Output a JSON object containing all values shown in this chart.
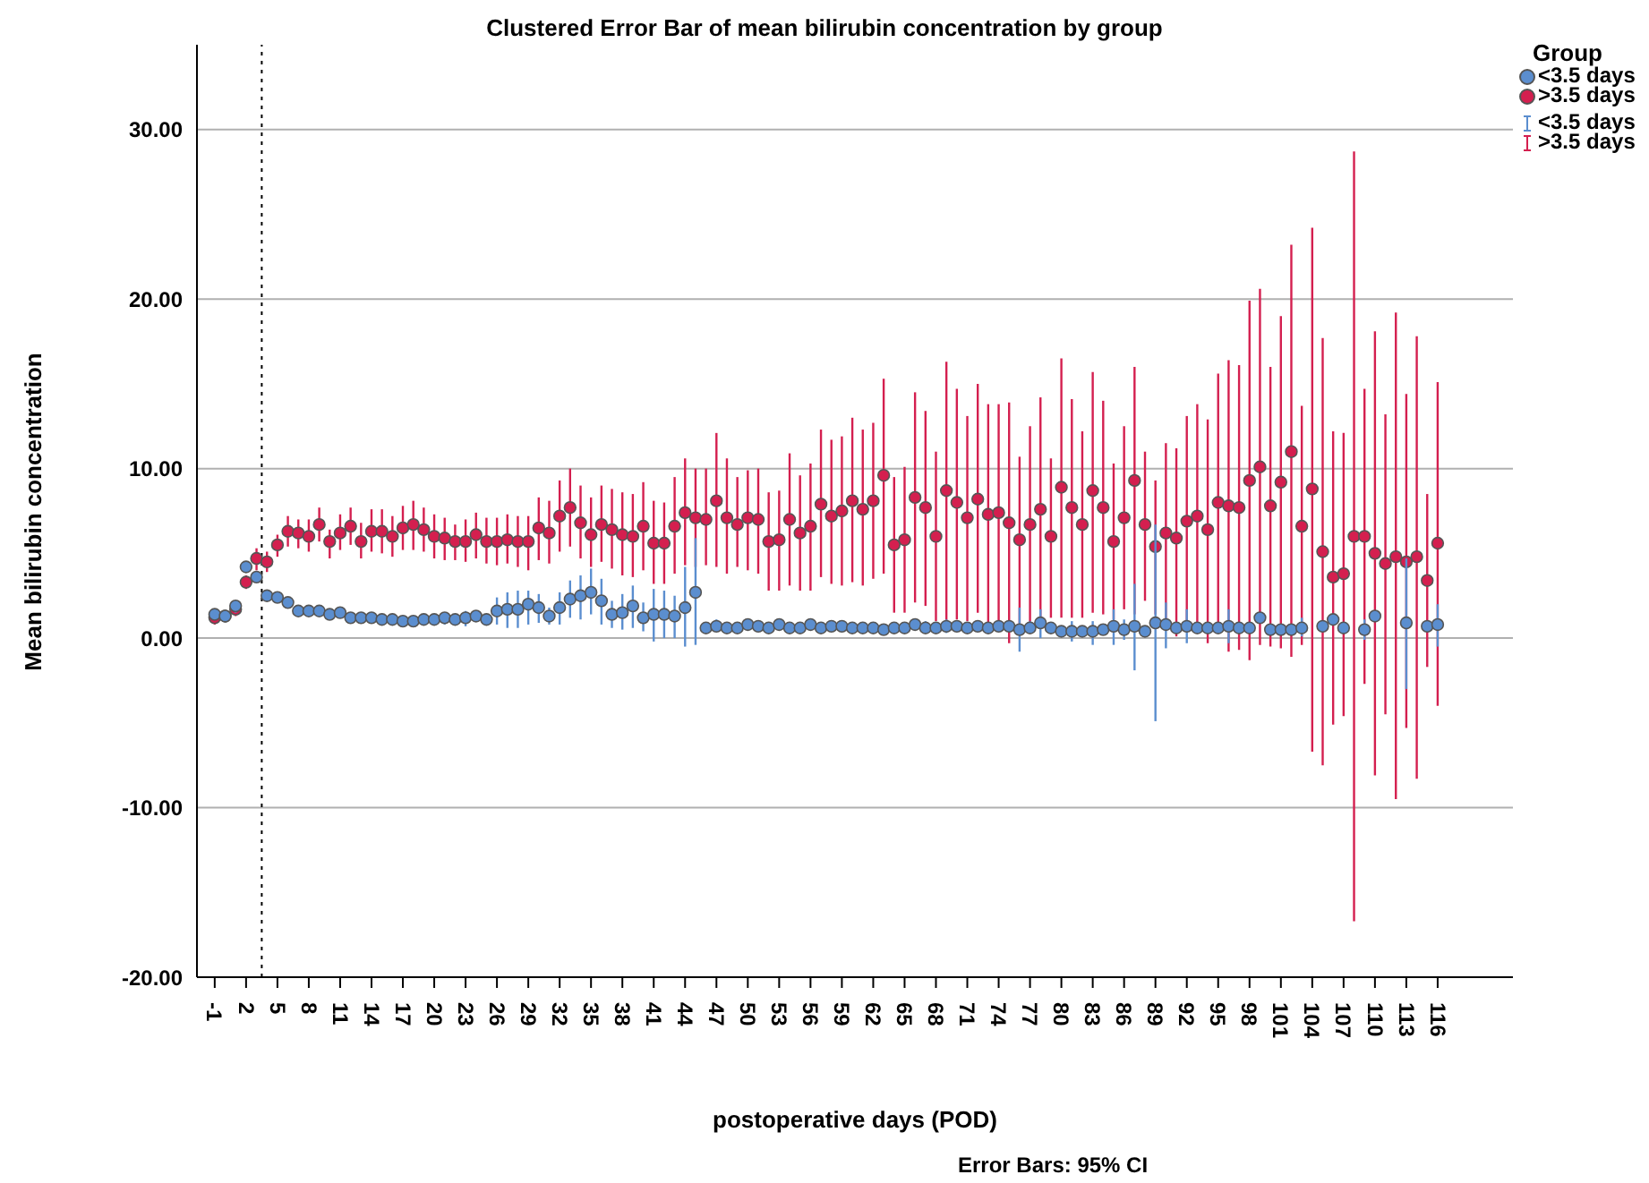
{
  "chart_data": {
    "type": "scatter",
    "title": "Clustered Error Bar of mean bilirubin concentration by group",
    "xlabel": "postoperative days (POD)",
    "ylabel": "Mean bilirubin concentration",
    "legend_title": "Group",
    "annotations": [
      "Error Bars: 95% CI"
    ],
    "x": [
      -1,
      0,
      1,
      2,
      3,
      4,
      5,
      6,
      7,
      8,
      9,
      10,
      11,
      12,
      13,
      14,
      15,
      16,
      17,
      18,
      19,
      20,
      21,
      22,
      23,
      24,
      25,
      26,
      27,
      28,
      29,
      30,
      31,
      32,
      33,
      34,
      35,
      36,
      37,
      38,
      39,
      40,
      41,
      42,
      43,
      44,
      45,
      46,
      47,
      48,
      49,
      50,
      51,
      52,
      53,
      54,
      55,
      56,
      57,
      58,
      59,
      60,
      61,
      62,
      63,
      64,
      65,
      66,
      67,
      68,
      69,
      70,
      71,
      72,
      73,
      74,
      75,
      76,
      77,
      78,
      79,
      80,
      81,
      82,
      83,
      84,
      85,
      86,
      87,
      88,
      89,
      90,
      91,
      92,
      93,
      94,
      95,
      96,
      97,
      98,
      99,
      100,
      101,
      102,
      103,
      104,
      105,
      106,
      107,
      108,
      109,
      110,
      111,
      112,
      113,
      114,
      115,
      116
    ],
    "xlim": [
      -2.7,
      123.2
    ],
    "xticks": [
      -1,
      2,
      5,
      8,
      11,
      14,
      17,
      20,
      23,
      26,
      29,
      32,
      35,
      38,
      41,
      44,
      47,
      50,
      53,
      56,
      59,
      62,
      65,
      68,
      71,
      74,
      77,
      80,
      83,
      86,
      89,
      92,
      95,
      98,
      101,
      104,
      107,
      110,
      113,
      116
    ],
    "ylim": [
      -20,
      35
    ],
    "yticks": [
      {
        "value": -20,
        "label": "-20.00"
      },
      {
        "value": -10,
        "label": "-10.00"
      },
      {
        "value": 0,
        "label": "0.00"
      },
      {
        "value": 10,
        "label": "10.00"
      },
      {
        "value": 20,
        "label": "20.00"
      },
      {
        "value": 30,
        "label": "30.00"
      }
    ],
    "grid": "y",
    "legend": "top right",
    "marker": "circle",
    "ref_lines": [
      {
        "axis": "x",
        "value": 3.5,
        "line_style": "dotted",
        "color": "#000000"
      }
    ],
    "series": [
      {
        "name": "<3.5 days",
        "color": "#5b8ecf",
        "values": [
          1.4,
          1.3,
          1.9,
          4.2,
          3.6,
          2.5,
          2.4,
          2.1,
          1.6,
          1.6,
          1.6,
          1.4,
          1.5,
          1.2,
          1.2,
          1.2,
          1.1,
          1.1,
          1.0,
          1.0,
          1.1,
          1.1,
          1.2,
          1.1,
          1.2,
          1.3,
          1.1,
          1.6,
          1.7,
          1.7,
          2.0,
          1.8,
          1.3,
          1.8,
          2.3,
          2.5,
          2.7,
          2.2,
          1.4,
          1.5,
          1.9,
          1.2,
          1.4,
          1.4,
          1.3,
          1.8,
          2.7,
          0.6,
          0.7,
          0.6,
          0.6,
          0.8,
          0.7,
          0.6,
          0.8,
          0.6,
          0.6,
          0.8,
          0.6,
          0.7,
          0.7,
          0.6,
          0.6,
          0.6,
          0.5,
          0.6,
          0.6,
          0.8,
          0.6,
          0.6,
          0.7,
          0.7,
          0.6,
          0.7,
          0.6,
          0.7,
          0.7,
          0.5,
          0.6,
          0.9,
          0.6,
          0.4,
          0.4,
          0.4,
          0.4,
          0.5,
          0.7,
          0.5,
          0.7,
          0.4,
          0.9,
          0.8,
          0.6,
          0.7,
          0.6,
          0.6,
          0.6,
          0.7,
          0.6,
          0.6,
          1.2,
          0.5,
          0.5,
          0.5,
          0.6,
          null,
          0.7,
          1.1,
          0.6,
          null,
          0.5,
          1.3,
          null,
          null,
          0.9,
          null,
          0.7,
          0.8
        ],
        "errors": [
          null,
          null,
          [
            1.5,
            2.2
          ],
          null,
          null,
          null,
          null,
          null,
          null,
          null,
          null,
          null,
          null,
          null,
          null,
          null,
          null,
          null,
          null,
          null,
          null,
          null,
          [
            0.8,
            1.5
          ],
          null,
          [
            0.7,
            1.6
          ],
          null,
          null,
          [
            0.8,
            2.4
          ],
          [
            0.6,
            2.7
          ],
          [
            0.6,
            2.8
          ],
          [
            0.8,
            2.8
          ],
          [
            0.9,
            2.6
          ],
          [
            0.8,
            1.8
          ],
          [
            0.8,
            2.7
          ],
          [
            1.2,
            3.4
          ],
          [
            1.1,
            3.7
          ],
          [
            1.4,
            4.1
          ],
          [
            0.8,
            3.5
          ],
          [
            0.6,
            2.2
          ],
          [
            0.5,
            2.6
          ],
          [
            0.6,
            3.1
          ],
          [
            0.4,
            2.1
          ],
          [
            -0.2,
            2.9
          ],
          [
            0.0,
            2.8
          ],
          [
            0.0,
            2.5
          ],
          [
            -0.5,
            4.2
          ],
          [
            -0.4,
            5.9
          ],
          null,
          [
            0.4,
            1.1
          ],
          null,
          null,
          null,
          null,
          null,
          null,
          null,
          null,
          null,
          null,
          null,
          null,
          null,
          null,
          null,
          null,
          null,
          null,
          null,
          [
            0.3,
            1.0
          ],
          null,
          [
            0.3,
            1.1
          ],
          null,
          null,
          null,
          null,
          null,
          null,
          [
            -0.8,
            1.8
          ],
          [
            0.3,
            1.0
          ],
          [
            0.0,
            1.7
          ],
          null,
          null,
          [
            -0.2,
            1.0
          ],
          null,
          [
            -0.4,
            1.0
          ],
          null,
          [
            -0.4,
            1.7
          ],
          [
            -0.1,
            1.1
          ],
          [
            -1.9,
            3.2
          ],
          null,
          [
            -4.9,
            6.7
          ],
          [
            -0.6,
            2.1
          ],
          null,
          [
            -0.3,
            1.7
          ],
          null,
          null,
          null,
          [
            -0.3,
            1.7
          ],
          null,
          null,
          null,
          null,
          null,
          null,
          [
            0.1,
            1.2
          ],
          null,
          null,
          null,
          null,
          null,
          [
            -0.1,
            1.1
          ],
          null,
          null,
          null,
          [
            -3.0,
            4.7
          ],
          null,
          null,
          [
            -0.5,
            2.0
          ]
        ]
      },
      {
        "name": ">3.5 days",
        "color": "#d41f4f",
        "values": [
          1.2,
          1.3,
          1.7,
          3.3,
          4.7,
          4.5,
          5.5,
          6.3,
          6.2,
          6.0,
          6.7,
          5.7,
          6.2,
          6.6,
          5.7,
          6.3,
          6.3,
          6.0,
          6.5,
          6.7,
          6.4,
          6.0,
          5.9,
          5.7,
          5.7,
          6.1,
          5.7,
          5.7,
          5.8,
          5.7,
          5.7,
          6.5,
          6.2,
          7.2,
          7.7,
          6.8,
          6.1,
          6.7,
          6.4,
          6.1,
          6.0,
          6.6,
          5.6,
          5.6,
          6.6,
          7.4,
          7.1,
          7.0,
          8.1,
          7.1,
          6.7,
          7.1,
          7.0,
          5.7,
          5.8,
          7.0,
          6.2,
          6.6,
          7.9,
          7.2,
          7.5,
          8.1,
          7.6,
          8.1,
          9.6,
          5.5,
          5.8,
          8.3,
          7.7,
          6.0,
          8.7,
          8.0,
          7.1,
          8.2,
          7.3,
          7.4,
          6.8,
          5.8,
          6.7,
          7.6,
          6.0,
          8.9,
          7.7,
          6.7,
          8.7,
          7.7,
          5.7,
          7.1,
          9.3,
          6.7,
          5.4,
          6.2,
          5.9,
          6.9,
          7.2,
          6.4,
          8.0,
          7.8,
          7.7,
          9.3,
          10.1,
          7.8,
          9.2,
          11.0,
          6.6,
          8.8,
          5.1,
          3.6,
          3.8,
          6.0,
          6.0,
          5.0,
          4.4,
          4.8,
          4.5,
          4.8,
          3.4,
          5.6
        ],
        "errors": [
          [
            0.8,
            1.6
          ],
          null,
          [
            1.3,
            2.1
          ],
          [
            2.9,
            3.7
          ],
          [
            4.0,
            5.3
          ],
          [
            3.9,
            5.1
          ],
          [
            4.8,
            6.1
          ],
          [
            5.4,
            7.2
          ],
          [
            5.3,
            7.0
          ],
          [
            5.1,
            7.0
          ],
          [
            5.7,
            7.7
          ],
          [
            4.7,
            6.4
          ],
          [
            5.2,
            7.3
          ],
          [
            5.5,
            7.7
          ],
          [
            4.7,
            6.8
          ],
          [
            5.1,
            7.6
          ],
          [
            5.0,
            7.6
          ],
          [
            4.8,
            7.2
          ],
          [
            5.2,
            7.8
          ],
          [
            5.2,
            8.1
          ],
          [
            5.1,
            7.7
          ],
          [
            4.7,
            7.3
          ],
          [
            4.6,
            7.1
          ],
          [
            4.6,
            6.7
          ],
          [
            4.5,
            7.0
          ],
          [
            4.7,
            7.4
          ],
          [
            4.4,
            7.1
          ],
          [
            4.3,
            7.1
          ],
          [
            4.4,
            7.3
          ],
          [
            4.2,
            7.2
          ],
          [
            4.0,
            7.2
          ],
          [
            4.6,
            8.3
          ],
          [
            4.4,
            8.1
          ],
          [
            5.1,
            9.3
          ],
          [
            5.4,
            10.0
          ],
          [
            4.7,
            9.0
          ],
          [
            4.2,
            8.3
          ],
          [
            4.5,
            9.0
          ],
          [
            4.1,
            8.8
          ],
          [
            3.7,
            8.6
          ],
          [
            3.6,
            8.5
          ],
          [
            4.0,
            9.2
          ],
          [
            3.2,
            8.1
          ],
          [
            3.2,
            8.0
          ],
          [
            3.8,
            9.5
          ],
          [
            4.3,
            10.6
          ],
          [
            4.2,
            10.0
          ],
          [
            4.3,
            10.0
          ],
          [
            4.2,
            12.1
          ],
          [
            3.8,
            10.6
          ],
          [
            4.2,
            9.5
          ],
          [
            4.0,
            9.9
          ],
          [
            3.8,
            10.0
          ],
          [
            2.8,
            8.6
          ],
          [
            2.8,
            8.7
          ],
          [
            3.1,
            10.9
          ],
          [
            2.8,
            9.6
          ],
          [
            2.8,
            10.3
          ],
          [
            3.6,
            12.3
          ],
          [
            3.2,
            11.7
          ],
          [
            3.1,
            11.9
          ],
          [
            3.3,
            13.0
          ],
          [
            3.1,
            12.3
          ],
          [
            3.5,
            12.7
          ],
          [
            3.8,
            15.3
          ],
          [
            1.5,
            9.5
          ],
          [
            1.5,
            10.1
          ],
          [
            2.1,
            14.5
          ],
          [
            1.9,
            13.4
          ],
          [
            1.0,
            11.0
          ],
          [
            1.0,
            16.3
          ],
          [
            1.1,
            14.7
          ],
          [
            1.0,
            13.1
          ],
          [
            1.5,
            15.0
          ],
          [
            0.8,
            13.8
          ],
          [
            0.8,
            13.8
          ],
          [
            -0.3,
            13.9
          ],
          [
            0.8,
            10.7
          ],
          [
            0.7,
            12.5
          ],
          [
            0.8,
            14.2
          ],
          [
            1.2,
            10.6
          ],
          [
            1.2,
            16.5
          ],
          [
            1.2,
            14.1
          ],
          [
            1.2,
            12.2
          ],
          [
            1.5,
            15.7
          ],
          [
            1.4,
            14.0
          ],
          [
            1.1,
            10.3
          ],
          [
            1.7,
            12.5
          ],
          [
            1.4,
            16.0
          ],
          [
            2.2,
            11.0
          ],
          [
            1.4,
            9.3
          ],
          [
            0.6,
            11.5
          ],
          [
            0.1,
            11.2
          ],
          [
            0.6,
            13.1
          ],
          [
            0.8,
            13.8
          ],
          [
            -0.3,
            12.9
          ],
          [
            0.6,
            15.6
          ],
          [
            -0.8,
            16.4
          ],
          [
            -0.7,
            16.1
          ],
          [
            -1.3,
            19.9
          ],
          [
            -0.4,
            20.6
          ],
          [
            -0.5,
            16.0
          ],
          [
            -0.6,
            19.0
          ],
          [
            -1.1,
            23.2
          ],
          [
            -0.4,
            13.7
          ],
          [
            -6.7,
            24.2
          ],
          [
            -7.5,
            17.7
          ],
          [
            -5.1,
            12.2
          ],
          [
            -4.6,
            12.1
          ],
          [
            -16.7,
            28.7
          ],
          [
            -2.7,
            14.7
          ],
          [
            -8.1,
            18.1
          ],
          [
            -4.5,
            13.2
          ],
          [
            -9.5,
            19.2
          ],
          [
            -5.3,
            14.4
          ],
          [
            -8.3,
            17.8
          ],
          [
            -1.7,
            8.5
          ],
          [
            -4.0,
            15.1
          ]
        ]
      }
    ]
  }
}
